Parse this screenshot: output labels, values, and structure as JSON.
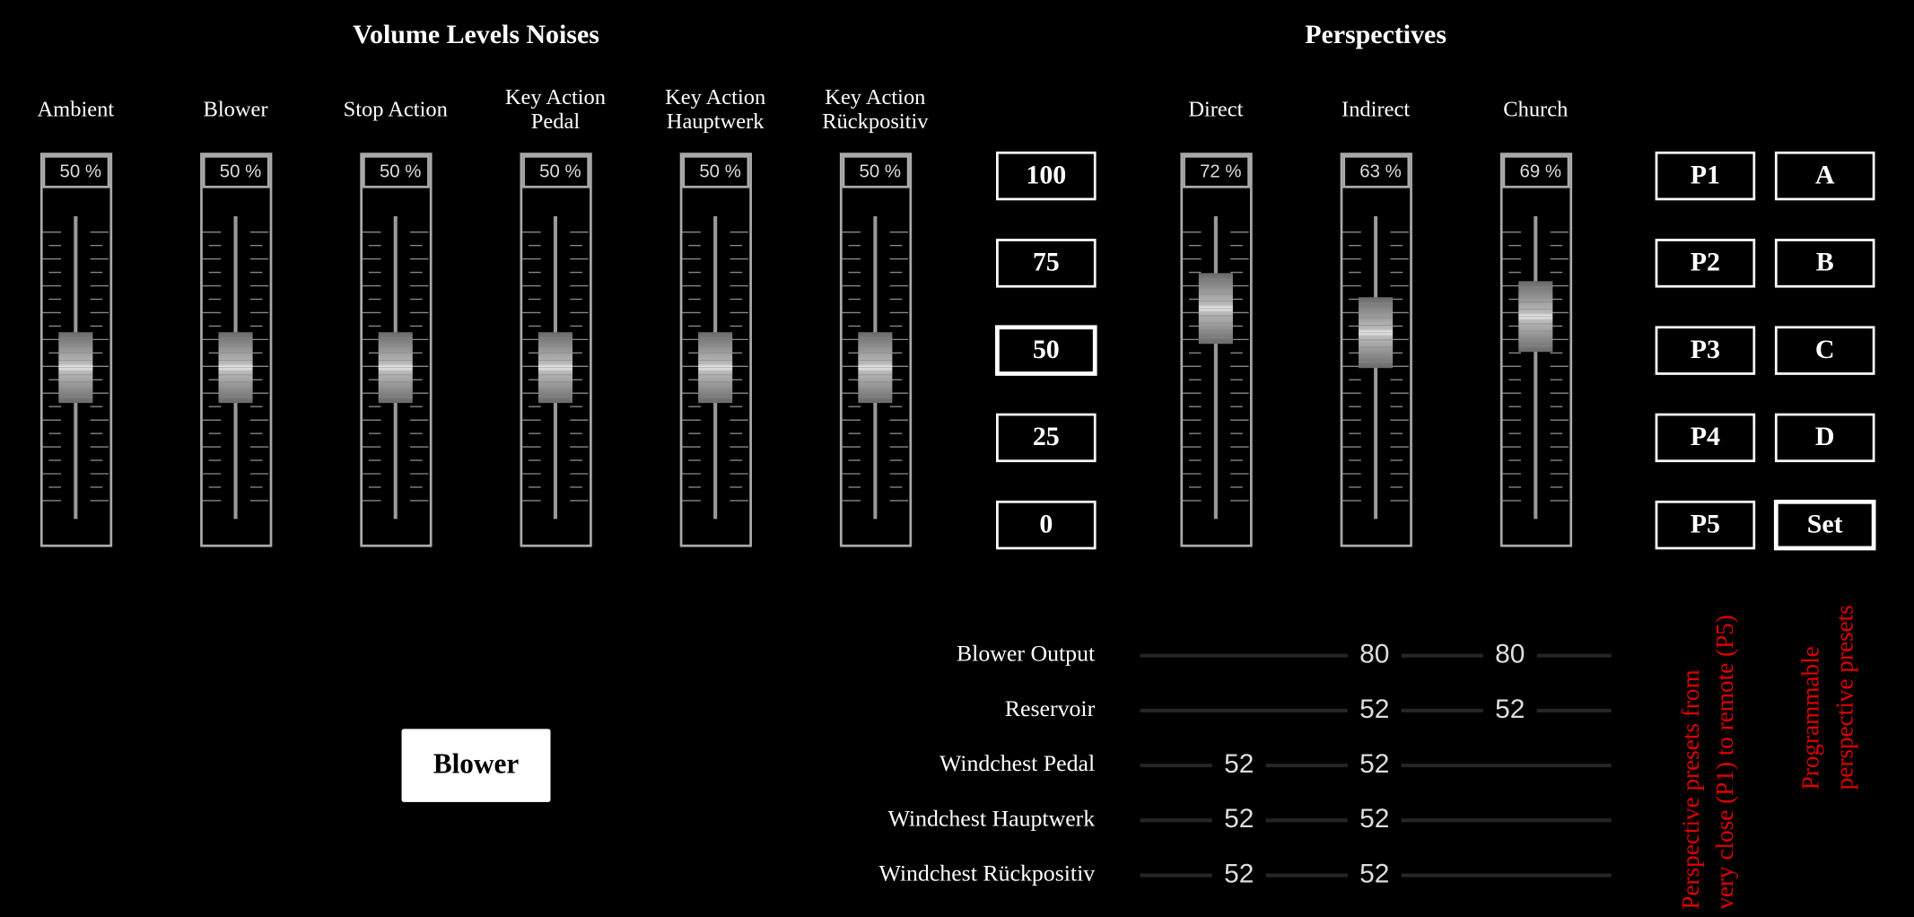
{
  "volume": {
    "title": "Volume Levels Noises",
    "faders": [
      {
        "label": [
          "Ambient"
        ],
        "level": {
          "value": 50,
          "label": "50 %"
        }
      },
      {
        "label": [
          "Blower"
        ],
        "level": {
          "value": 50,
          "label": "50 %"
        }
      },
      {
        "label": [
          "Stop Action"
        ],
        "level": {
          "value": 50,
          "label": "50 %"
        }
      },
      {
        "label": [
          "Key Action",
          "Pedal"
        ],
        "level": {
          "value": 50,
          "label": "50 %"
        }
      },
      {
        "label": [
          "Key Action",
          "Hauptwerk"
        ],
        "level": {
          "value": 50,
          "label": "50 %"
        }
      },
      {
        "label": [
          "Key Action",
          "Rückpositiv"
        ],
        "level": {
          "value": 50,
          "label": "50 %"
        }
      }
    ]
  },
  "level_presets": {
    "buttons": [
      "100",
      "75",
      "50",
      "25",
      "0"
    ],
    "selected": 2
  },
  "perspectives": {
    "title": "Perspectives",
    "faders": [
      {
        "label": [
          "Direct"
        ],
        "level": {
          "value": 72,
          "label": "72 %"
        }
      },
      {
        "label": [
          "Indirect"
        ],
        "level": {
          "value": 63,
          "label": "63 %"
        }
      },
      {
        "label": [
          "Church"
        ],
        "level": {
          "value": 69,
          "label": "69 %"
        }
      }
    ]
  },
  "perspective_presets": {
    "buttons": [
      "P1",
      "P2",
      "P3",
      "P4",
      "P5"
    ]
  },
  "programmable_presets": {
    "buttons": [
      "A",
      "B",
      "C",
      "D",
      "Set"
    ],
    "selected": 4
  },
  "wind": {
    "rows": [
      {
        "label": "Blower Output",
        "values": [
          null,
          80,
          80
        ]
      },
      {
        "label": "Reservoir",
        "values": [
          null,
          52,
          52
        ]
      },
      {
        "label": "Windchest Pedal",
        "values": [
          52,
          52,
          null
        ]
      },
      {
        "label": "Windchest Hauptwerk",
        "values": [
          52,
          52,
          null
        ]
      },
      {
        "label": "Windchest Rückpositiv",
        "values": [
          52,
          52,
          null
        ]
      }
    ]
  },
  "blower_button": "Blower",
  "annotations": [
    [
      "Perspective presets from",
      "very close (P1) to remote (P5)"
    ],
    [
      "Programmable",
      "perspective presets"
    ]
  ]
}
